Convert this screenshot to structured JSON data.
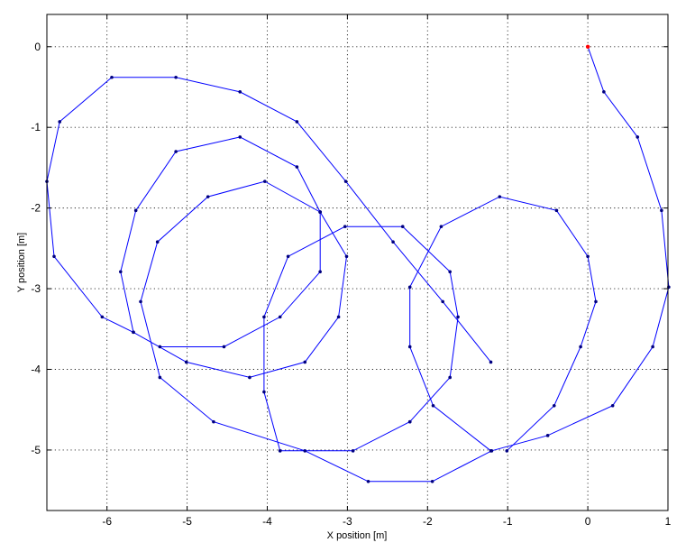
{
  "chart_data": {
    "type": "line",
    "title": "",
    "xlabel": "X position [m]",
    "ylabel": "Y position [m]",
    "xlim": [
      -6.75,
      1.0
    ],
    "ylim": [
      -5.75,
      0.4
    ],
    "xticks": [
      -6,
      -5,
      -4,
      -3,
      -2,
      -1,
      0,
      1
    ],
    "yticks": [
      0,
      -1,
      -2,
      -3,
      -4,
      -5
    ],
    "xtick_labels": [
      "-6",
      "-5",
      "-4",
      "-3",
      "-2",
      "-1",
      "0",
      "1"
    ],
    "ytick_labels": [
      "0",
      "-1",
      "-2",
      "-3",
      "-4",
      "-5"
    ],
    "grid": true,
    "colors": {
      "line": "#0000ff",
      "marker": "#000080",
      "start": "#ff0000"
    },
    "series": [
      {
        "points": [
          [
            0.0,
            0.0
          ],
          [
            0.2,
            -0.56
          ],
          [
            0.62,
            -1.12
          ],
          [
            0.92,
            -2.03
          ],
          [
            1.01,
            -2.98
          ],
          [
            0.81,
            -3.72
          ],
          [
            0.31,
            -4.45
          ],
          [
            -0.5,
            -4.82
          ],
          [
            -1.2,
            -5.01
          ],
          [
            -1.94,
            -5.39
          ],
          [
            -2.74,
            -5.39
          ],
          [
            -3.53,
            -5.01
          ],
          [
            -4.67,
            -4.65
          ],
          [
            -5.34,
            -4.1
          ],
          [
            -5.58,
            -3.16
          ],
          [
            -5.37,
            -2.42
          ],
          [
            -4.74,
            -1.86
          ],
          [
            -4.03,
            -1.67
          ],
          [
            -3.34,
            -2.05
          ],
          [
            -3.01,
            -2.6
          ],
          [
            -3.11,
            -3.35
          ],
          [
            -3.53,
            -3.91
          ],
          [
            -4.22,
            -4.1
          ],
          [
            -5.01,
            -3.91
          ],
          [
            -5.67,
            -3.54
          ],
          [
            -6.06,
            -3.35
          ],
          [
            -6.66,
            -2.6
          ],
          [
            -6.75,
            -1.67
          ],
          [
            -6.59,
            -0.93
          ],
          [
            -5.94,
            -0.38
          ],
          [
            -5.14,
            -0.38
          ],
          [
            -4.34,
            -0.56
          ],
          [
            -3.63,
            -0.93
          ],
          [
            -3.02,
            -1.67
          ],
          [
            -2.43,
            -2.42
          ],
          [
            -1.81,
            -3.16
          ],
          [
            -1.21,
            -3.91
          ]
        ]
      },
      {
        "points": [
          [
            -1.01,
            -5.01
          ],
          [
            -0.42,
            -4.45
          ],
          [
            -0.09,
            -3.72
          ],
          [
            0.1,
            -3.16
          ],
          [
            0.0,
            -2.6
          ],
          [
            -0.39,
            -2.03
          ],
          [
            -1.1,
            -1.86
          ],
          [
            -1.83,
            -2.23
          ],
          [
            -2.22,
            -2.98
          ],
          [
            -2.22,
            -3.72
          ],
          [
            -1.93,
            -4.45
          ],
          [
            -1.21,
            -5.01
          ]
        ]
      },
      {
        "points": [
          [
            -2.22,
            -4.65
          ],
          [
            -2.93,
            -5.01
          ],
          [
            -3.84,
            -5.01
          ],
          [
            -4.04,
            -4.28
          ],
          [
            -4.04,
            -3.35
          ],
          [
            -3.74,
            -2.6
          ],
          [
            -3.03,
            -2.23
          ],
          [
            -2.31,
            -2.23
          ],
          [
            -1.72,
            -2.79
          ],
          [
            -1.62,
            -3.35
          ],
          [
            -1.72,
            -4.1
          ],
          [
            -2.22,
            -4.65
          ]
        ]
      },
      {
        "points": [
          [
            -3.34,
            -2.05
          ],
          [
            -3.34,
            -2.79
          ],
          [
            -3.84,
            -3.35
          ],
          [
            -4.54,
            -3.72
          ],
          [
            -5.34,
            -3.72
          ]
        ]
      },
      {
        "points": [
          [
            -5.67,
            -3.54
          ],
          [
            -5.83,
            -2.79
          ],
          [
            -5.64,
            -2.03
          ],
          [
            -5.14,
            -1.3
          ],
          [
            -4.34,
            -1.12
          ],
          [
            -3.63,
            -1.49
          ],
          [
            -3.34,
            -2.05
          ]
        ]
      }
    ]
  }
}
